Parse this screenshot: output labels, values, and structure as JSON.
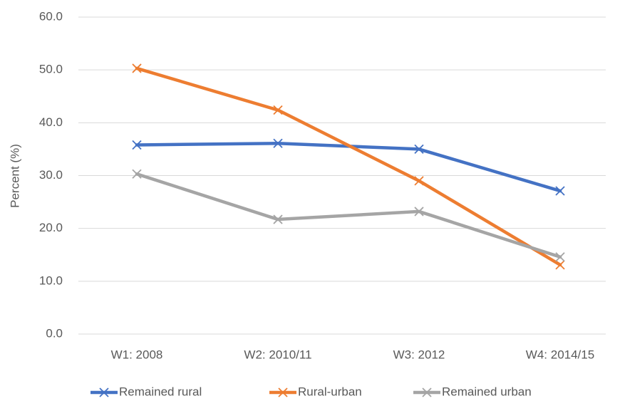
{
  "chart_data": {
    "type": "line",
    "y_label": "Percent (%)",
    "categories": [
      "W1: 2008",
      "W2: 2010/11",
      "W3: 2012",
      "W4: 2014/15"
    ],
    "series": [
      {
        "name": "Remained rural",
        "color": "#4472c4",
        "values": [
          35.8,
          36.1,
          35.0,
          27.1
        ]
      },
      {
        "name": "Rural-urban",
        "color": "#ed7d31",
        "values": [
          50.3,
          42.4,
          29.0,
          13.1
        ]
      },
      {
        "name": "Remained urban",
        "color": "#a5a5a5",
        "values": [
          30.3,
          21.7,
          23.2,
          14.6
        ]
      }
    ],
    "ylim": [
      0,
      60
    ],
    "yticks": [
      {
        "value": 0,
        "label": "0.0"
      },
      {
        "value": 10,
        "label": "10.0"
      },
      {
        "value": 20,
        "label": "20.0"
      },
      {
        "value": 30,
        "label": "30.0"
      },
      {
        "value": 40,
        "label": "40.0"
      },
      {
        "value": 50,
        "label": "50.0"
      },
      {
        "value": 60,
        "label": "60.0"
      }
    ],
    "grid": true,
    "legend": "bottom"
  }
}
